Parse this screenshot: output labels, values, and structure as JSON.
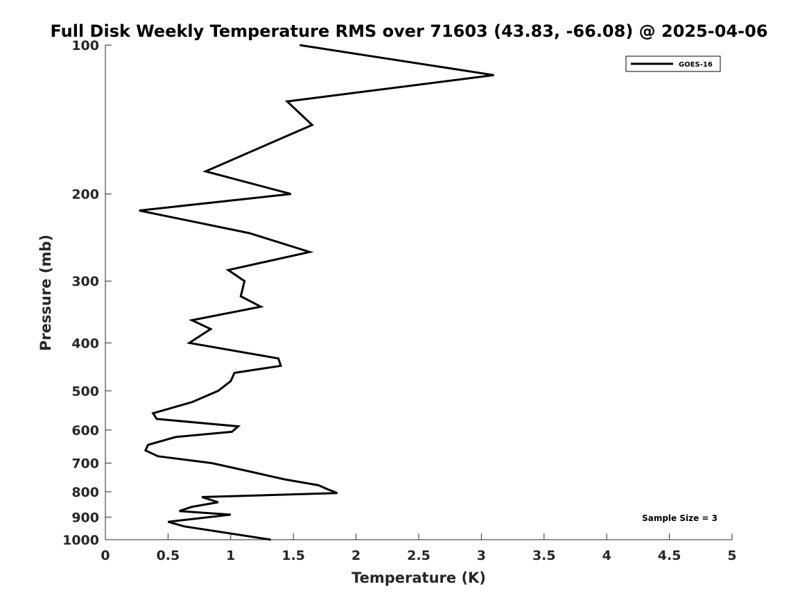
{
  "chart_data": {
    "type": "line",
    "title": "Full Disk Weekly Temperature RMS over 71603 (43.83, -66.08) @ 2025-04-06",
    "xlabel": "Temperature (K)",
    "ylabel": "Pressure (mb)",
    "xlim": [
      0,
      5
    ],
    "ylim": [
      100,
      1000
    ],
    "y_scale": "log",
    "y_reversed": true,
    "grid": false,
    "legend_position": "top-right",
    "x_ticks": [
      "0",
      "0.5",
      "1",
      "1.5",
      "2",
      "2.5",
      "3",
      "3.5",
      "4",
      "4.5",
      "5"
    ],
    "y_ticks": [
      "100",
      "200",
      "300",
      "400",
      "500",
      "600",
      "700",
      "800",
      "900",
      "1000"
    ],
    "series": [
      {
        "name": "GOES-16",
        "color": "#000000",
        "x": [
          1.55,
          3.1,
          1.45,
          1.65,
          0.8,
          1.48,
          0.27,
          1.15,
          1.63,
          0.98,
          1.11,
          1.08,
          1.24,
          0.69,
          0.84,
          0.67,
          1.38,
          1.4,
          1.03,
          1.0,
          0.9,
          0.69,
          0.38,
          0.41,
          1.06,
          1.01,
          0.56,
          0.34,
          0.32,
          0.42,
          0.85,
          1.12,
          1.43,
          1.7,
          1.77,
          1.85,
          0.77,
          0.9,
          0.69,
          0.59,
          1.0,
          0.5,
          0.63,
          1.32
        ],
        "y": [
          100,
          115,
          130,
          145,
          180,
          200,
          216,
          240,
          262,
          285,
          300,
          322,
          338,
          360,
          375,
          400,
          430,
          445,
          460,
          478,
          500,
          527,
          555,
          570,
          590,
          605,
          620,
          643,
          660,
          678,
          700,
          725,
          755,
          776,
          790,
          805,
          820,
          840,
          858,
          875,
          890,
          920,
          940,
          1000
        ]
      }
    ],
    "annotation": "Sample Size = 3"
  }
}
